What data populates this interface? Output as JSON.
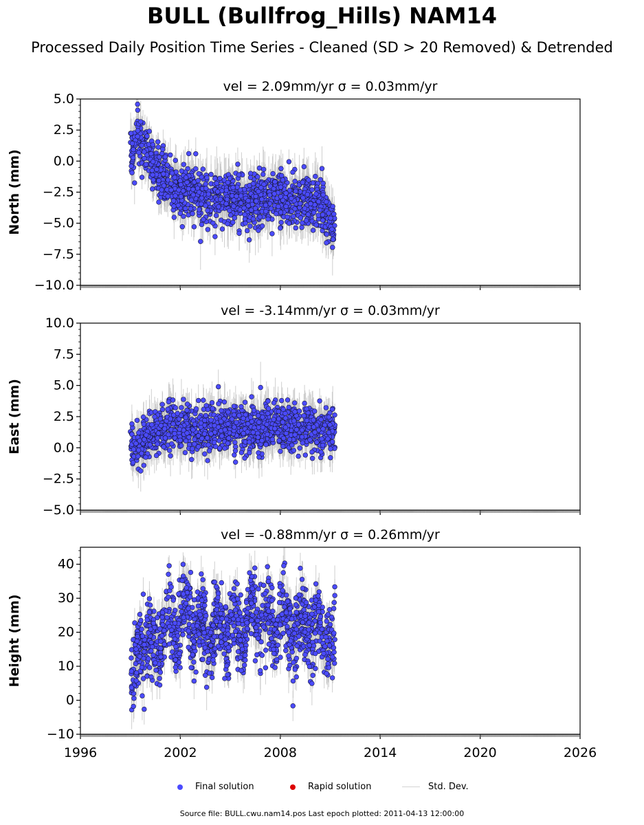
{
  "title": "BULL (Bullfrog_Hills) NAM14",
  "subtitle": "Processed Daily Position Time Series - Cleaned (SD > 20 Removed) & Detrended",
  "colors": {
    "final_solution": "#4b4bff",
    "rapid_solution": "#dd0000",
    "std_dev": "#bfbfbf",
    "point_edge": "#1a1a3a"
  },
  "legend": {
    "final": "Final solution",
    "rapid": "Rapid solution",
    "std": "Std. Dev."
  },
  "footer": "Source file: BULL.cwu.nam14.pos  Last epoch plotted: 2011-04-13 12:00:00",
  "chart_data": [
    {
      "type": "scatter",
      "title": "vel = 2.09mm/yr   σ = 0.03mm/yr",
      "ylabel": "North (mm)",
      "xlim": [
        1996,
        2026
      ],
      "ylim": [
        -10,
        5
      ],
      "yticks": [
        "5.0",
        "2.5",
        "0.0",
        "−2.5",
        "−5.0",
        "−7.5",
        "−10.0"
      ],
      "x_range_data": [
        1999.0,
        2011.28
      ],
      "series": [
        {
          "name": "Final solution",
          "x": [
            1999.2,
            1999.4,
            1999.6,
            2000.1,
            2000.5,
            2001.2,
            2001.8,
            2002.6,
            2003.4,
            2004.3,
            2005.0,
            2005.9,
            2006.8,
            2007.5,
            2008.3,
            2009.1,
            2009.8,
            2010.5,
            2011.1
          ],
          "y": [
            0.5,
            2.5,
            1.5,
            0.8,
            -0.5,
            -1.5,
            -2.5,
            -2.0,
            -2.8,
            -3.0,
            -3.0,
            -3.5,
            -3.2,
            -3.0,
            -3.2,
            -3.0,
            -3.3,
            -3.0,
            -5.5
          ]
        }
      ]
    },
    {
      "type": "scatter",
      "title": "vel = -3.14mm/yr   σ = 0.03mm/yr",
      "ylabel": "East (mm)",
      "xlim": [
        1996,
        2026
      ],
      "ylim": [
        -5,
        10
      ],
      "yticks": [
        "10.0",
        "7.5",
        "5.0",
        "2.5",
        "0.0",
        "−2.5",
        "−5.0"
      ],
      "x_range_data": [
        1999.0,
        2011.28
      ],
      "series": [
        {
          "name": "Final solution",
          "x": [
            1999.2,
            1999.6,
            2000.1,
            2000.6,
            2001.3,
            2002.2,
            2003.0,
            2003.8,
            2004.6,
            2005.4,
            2006.2,
            2007.0,
            2007.8,
            2008.6,
            2009.4,
            2010.2,
            2011.0
          ],
          "y": [
            0.0,
            0.5,
            1.0,
            1.2,
            1.5,
            1.6,
            1.5,
            1.4,
            1.6,
            1.5,
            1.5,
            1.6,
            1.7,
            1.6,
            1.5,
            1.4,
            1.5
          ]
        }
      ]
    },
    {
      "type": "scatter",
      "title": "vel = -0.88mm/yr   σ = 0.26mm/yr",
      "ylabel": "Height (mm)",
      "xlim": [
        1996,
        2026
      ],
      "ylim": [
        -10,
        45
      ],
      "yticks": [
        "40",
        "30",
        "20",
        "10",
        "0",
        "−10"
      ],
      "xticks": [
        "1996",
        "2002",
        "2008",
        "2014",
        "2020",
        "2026"
      ],
      "x_range_data": [
        1999.0,
        2011.28
      ],
      "series": [
        {
          "name": "Final solution",
          "x": [
            1999.2,
            1999.7,
            2000.3,
            2000.9,
            2001.6,
            2002.4,
            2003.2,
            2004.0,
            2004.8,
            2005.6,
            2006.4,
            2007.2,
            2008.0,
            2008.8,
            2009.6,
            2010.4,
            2011.1
          ],
          "y": [
            5,
            20,
            15,
            20,
            22,
            25,
            22,
            20,
            22,
            20,
            25,
            22,
            25,
            20,
            22,
            20,
            18
          ]
        }
      ]
    }
  ]
}
